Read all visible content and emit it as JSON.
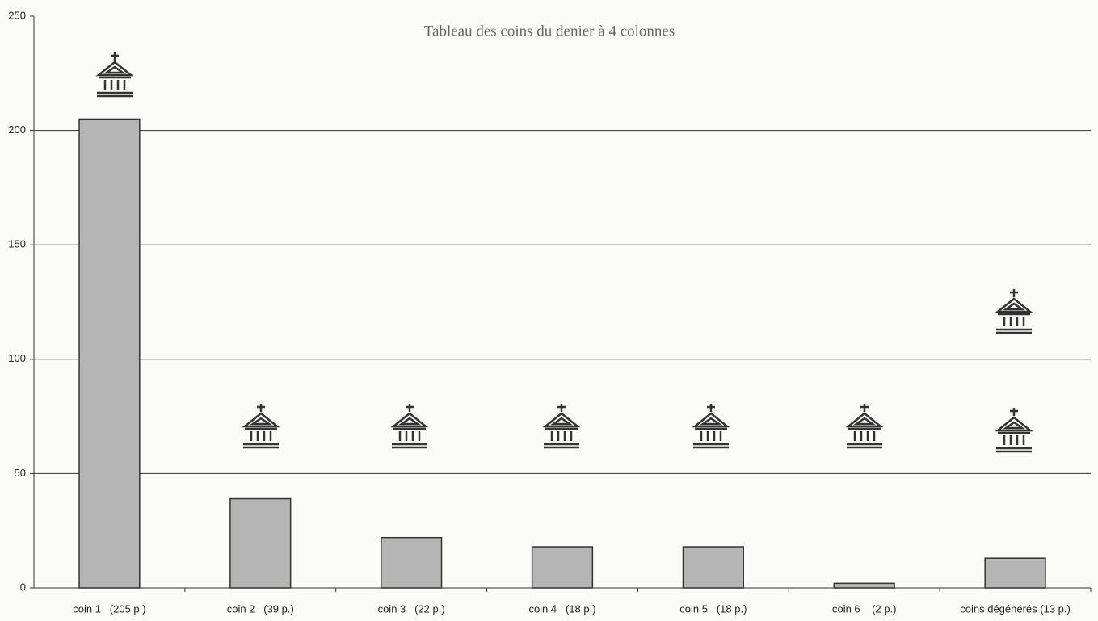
{
  "chart_data": {
    "type": "bar",
    "title": "Tableau des coins du denier à 4 colonnes",
    "categories": [
      "coin 1   (205 p.)",
      "coin 2   (39 p.)",
      "coin 3   (22 p.)",
      "coin 4   (18 p.)",
      "coin 5   (18 p.)",
      "coin 6    (2 p.)",
      "coins dégénérés (13 p.)"
    ],
    "values": [
      205,
      39,
      22,
      18,
      18,
      2,
      13
    ],
    "color": "#b5b5b5",
    "ylim": [
      0,
      250
    ],
    "yticks": [
      0,
      50,
      100,
      150,
      200,
      250
    ],
    "grid": true
  }
}
